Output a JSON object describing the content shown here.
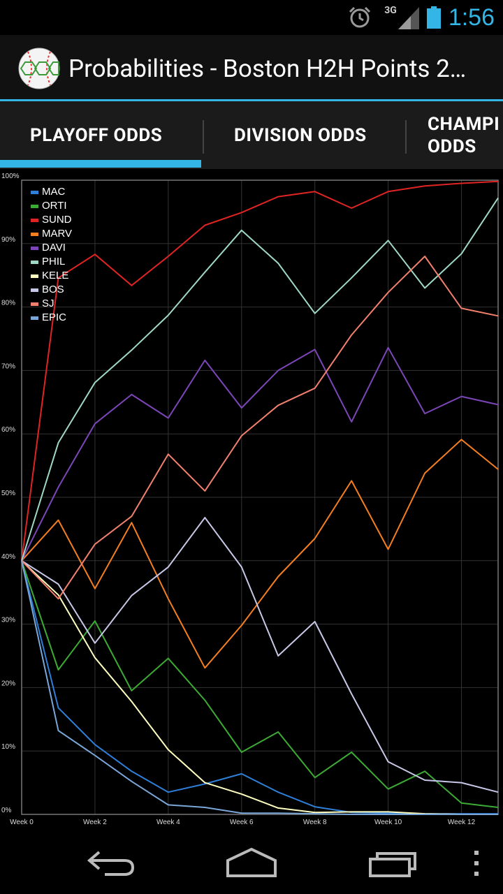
{
  "status_bar": {
    "time": "1:56",
    "network": "3G",
    "icons": [
      "alarm-icon",
      "signal-icon",
      "battery-icon"
    ]
  },
  "action_bar": {
    "title": "Probabilities - Boston H2H Points 2…",
    "icon": "baseball-icon"
  },
  "tabs": [
    {
      "label": "PLAYOFF ODDS",
      "selected": true
    },
    {
      "label": "DIVISION ODDS",
      "selected": false
    },
    {
      "label": "CHAMPI",
      "label2": "ODDS",
      "selected": false
    }
  ],
  "nav_bar": {
    "icons": [
      "back-icon",
      "home-icon",
      "recent-apps-icon",
      "overflow-menu-icon"
    ]
  },
  "colors": {
    "accent": "#33b5e5"
  },
  "chart_data": {
    "type": "line",
    "x": [
      0,
      1,
      2,
      3,
      4,
      5,
      6,
      7,
      8,
      9,
      10,
      11,
      12,
      13
    ],
    "xticks": [
      "Week 0",
      "Week 2",
      "Week 4",
      "Week 6",
      "Week 8",
      "Week 10",
      "Week 12"
    ],
    "xtick_values": [
      0,
      2,
      4,
      6,
      8,
      10,
      12
    ],
    "yticks": [
      "0%",
      "10%",
      "20%",
      "30%",
      "40%",
      "50%",
      "60%",
      "70%",
      "80%",
      "90%",
      "100%"
    ],
    "ylim": [
      0,
      100
    ],
    "xlim": [
      0,
      13
    ],
    "grid": true,
    "legend": "top-left",
    "series": [
      {
        "name": "MAC",
        "color": "#2f7fd8",
        "values": [
          40,
          16.8,
          11,
          6.8,
          3.5,
          4.8,
          6.4,
          3.5,
          1.2,
          0.3,
          0.2,
          0.1,
          0.1,
          0.1
        ]
      },
      {
        "name": "ORTI",
        "color": "#3daa35",
        "values": [
          40,
          22.8,
          30.5,
          19.5,
          24.6,
          18,
          9.8,
          13,
          5.8,
          9.8,
          4,
          6.8,
          1.8,
          1.1
        ]
      },
      {
        "name": "SUND",
        "color": "#e02424",
        "values": [
          40,
          84.6,
          88.3,
          83.4,
          88,
          92.9,
          94.9,
          97.4,
          98.2,
          95.6,
          98.2,
          99.1,
          99.5,
          99.8
        ]
      },
      {
        "name": "MARV",
        "color": "#f57f20",
        "values": [
          40,
          46.4,
          35.6,
          46,
          34,
          23.1,
          29.8,
          37.5,
          43.5,
          52.6,
          41.8,
          53.8,
          59.1,
          54.4
        ]
      },
      {
        "name": "DAVI",
        "color": "#7c46b8",
        "values": [
          40,
          51.6,
          61.6,
          66.2,
          62.5,
          71.6,
          64.1,
          70,
          73.3,
          61.9,
          73.6,
          63.2,
          65.9,
          64.6
        ]
      },
      {
        "name": "PHIL",
        "color": "#9fd9c6",
        "values": [
          40,
          58.6,
          68.1,
          73.2,
          78.7,
          85.5,
          92.1,
          86.9,
          79,
          84.6,
          90.5,
          83,
          88.4,
          97.2
        ]
      },
      {
        "name": "KELE",
        "color": "#fefec0",
        "values": [
          40,
          34.6,
          24.7,
          17.8,
          10.2,
          5,
          3.2,
          1,
          0.3,
          0.4,
          0.4,
          0.1,
          0,
          0
        ]
      },
      {
        "name": "BOS",
        "color": "#c7c7e8",
        "values": [
          40,
          36.3,
          27,
          34.5,
          39,
          46.8,
          39,
          25,
          30.4,
          19,
          8.3,
          5.4,
          5,
          3.5
        ]
      },
      {
        "name": "SJ",
        "color": "#f2806e",
        "values": [
          40,
          34,
          42.6,
          47,
          56.8,
          51,
          59.7,
          64.5,
          67.2,
          75.6,
          82.3,
          88,
          79.8,
          78.6
        ]
      },
      {
        "name": "EPIC",
        "color": "#7aa6d8",
        "values": [
          40,
          13.2,
          9.3,
          5.2,
          1.5,
          1.1,
          0.2,
          0.2,
          0.1,
          0,
          0,
          0,
          0,
          0
        ]
      }
    ]
  }
}
